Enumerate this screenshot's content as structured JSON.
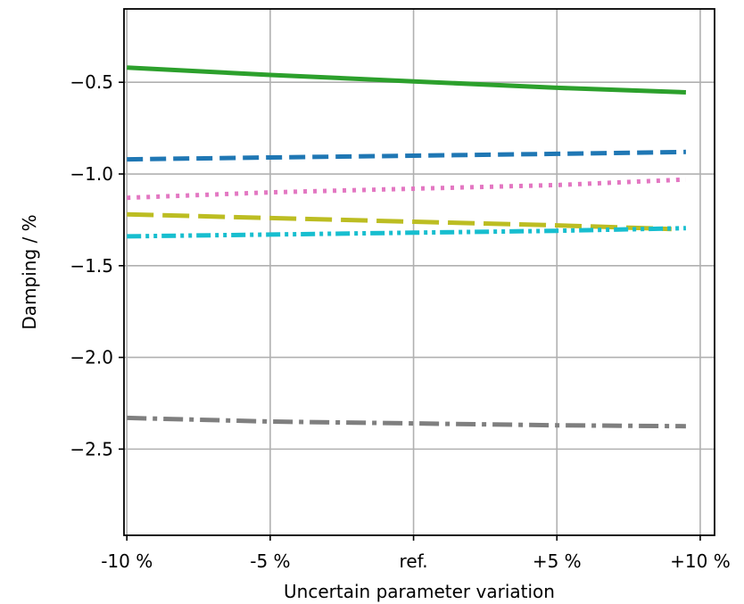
{
  "chart_data": {
    "type": "line",
    "title": "",
    "xlabel": "Uncertain parameter variation",
    "ylabel": "Damping / %",
    "x_ticks": [
      {
        "value": -10,
        "label": "-10 %"
      },
      {
        "value": -5,
        "label": "-5 %"
      },
      {
        "value": 0,
        "label": "ref."
      },
      {
        "value": 5,
        "label": "+5 %"
      },
      {
        "value": 10,
        "label": "+10 %"
      }
    ],
    "y_ticks": [
      {
        "value": -0.5,
        "label": "−0.5"
      },
      {
        "value": -1.0,
        "label": "−1.0"
      },
      {
        "value": -1.5,
        "label": "−1.5"
      },
      {
        "value": -2.0,
        "label": "−2.0"
      },
      {
        "value": -2.5,
        "label": "−2.5"
      }
    ],
    "xlim": [
      -10.1,
      10.5
    ],
    "ylim": [
      -2.97,
      -0.1
    ],
    "grid": true,
    "series": [
      {
        "color": "#2ca02c",
        "dash": "solid",
        "x": [
          -10,
          -5,
          0,
          5,
          9.5
        ],
        "y": [
          -0.42,
          -0.46,
          -0.495,
          -0.53,
          -0.555
        ]
      },
      {
        "color": "#1f77b4",
        "dash": "dashed",
        "x": [
          -10,
          -5,
          0,
          5,
          9.5
        ],
        "y": [
          -0.92,
          -0.91,
          -0.9,
          -0.89,
          -0.88
        ]
      },
      {
        "color": "#e377c2",
        "dash": "dotted",
        "x": [
          -10,
          -5,
          0,
          5,
          9.5
        ],
        "y": [
          -1.13,
          -1.1,
          -1.08,
          -1.06,
          -1.03
        ]
      },
      {
        "color": "#bcbd22",
        "dash": "longdash",
        "x": [
          -10,
          -5,
          0,
          5,
          9
        ],
        "y": [
          -1.22,
          -1.24,
          -1.26,
          -1.28,
          -1.3
        ]
      },
      {
        "color": "#17becf",
        "dash": "dashdotdot",
        "x": [
          -10,
          -5,
          0,
          5,
          9.5
        ],
        "y": [
          -1.34,
          -1.33,
          -1.32,
          -1.31,
          -1.295
        ]
      },
      {
        "color": "#7f7f7f",
        "dash": "dashdot",
        "x": [
          -10,
          -5,
          0,
          5,
          9.5
        ],
        "y": [
          -2.33,
          -2.35,
          -2.36,
          -2.37,
          -2.375
        ]
      }
    ]
  }
}
